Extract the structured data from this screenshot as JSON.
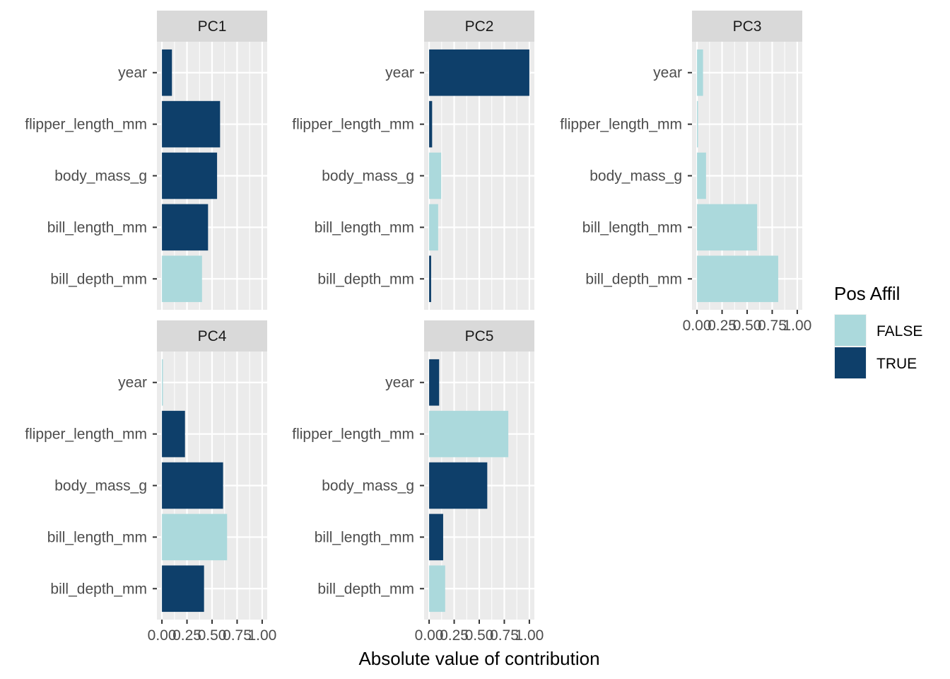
{
  "chart_data": {
    "type": "bar",
    "orientation": "horizontal",
    "xlabel": "Absolute value of contribution",
    "xlim": [
      0,
      1
    ],
    "x_ticks": [
      0,
      0.25,
      0.5,
      0.75,
      1
    ],
    "x_tick_labels": [
      "0.00",
      "0.25",
      "0.50",
      "0.75",
      "1.00"
    ],
    "categories": [
      "year",
      "flipper_length_mm",
      "body_mass_g",
      "bill_length_mm",
      "bill_depth_mm"
    ],
    "legend": {
      "title": "Pos Affil",
      "position": "right",
      "entries": [
        {
          "label": "FALSE",
          "color": "#abd9dc"
        },
        {
          "label": "TRUE",
          "color": "#0e3f6a"
        }
      ]
    },
    "grid": true,
    "panels": [
      {
        "name": "PC1",
        "values": [
          0.1,
          0.58,
          0.55,
          0.46,
          0.4
        ],
        "positive": [
          "TRUE",
          "TRUE",
          "TRUE",
          "TRUE",
          "FALSE"
        ]
      },
      {
        "name": "PC2",
        "values": [
          1.0,
          0.03,
          0.12,
          0.09,
          0.02
        ],
        "positive": [
          "TRUE",
          "TRUE",
          "FALSE",
          "FALSE",
          "TRUE"
        ]
      },
      {
        "name": "PC3",
        "values": [
          0.06,
          0.01,
          0.09,
          0.6,
          0.81
        ],
        "positive": [
          "FALSE",
          "FALSE",
          "FALSE",
          "FALSE",
          "FALSE"
        ]
      },
      {
        "name": "PC4",
        "values": [
          0.01,
          0.23,
          0.61,
          0.65,
          0.42
        ],
        "positive": [
          "FALSE",
          "TRUE",
          "TRUE",
          "FALSE",
          "TRUE"
        ]
      },
      {
        "name": "PC5",
        "values": [
          0.1,
          0.79,
          0.58,
          0.14,
          0.16
        ],
        "positive": [
          "TRUE",
          "FALSE",
          "TRUE",
          "TRUE",
          "FALSE"
        ]
      }
    ]
  }
}
